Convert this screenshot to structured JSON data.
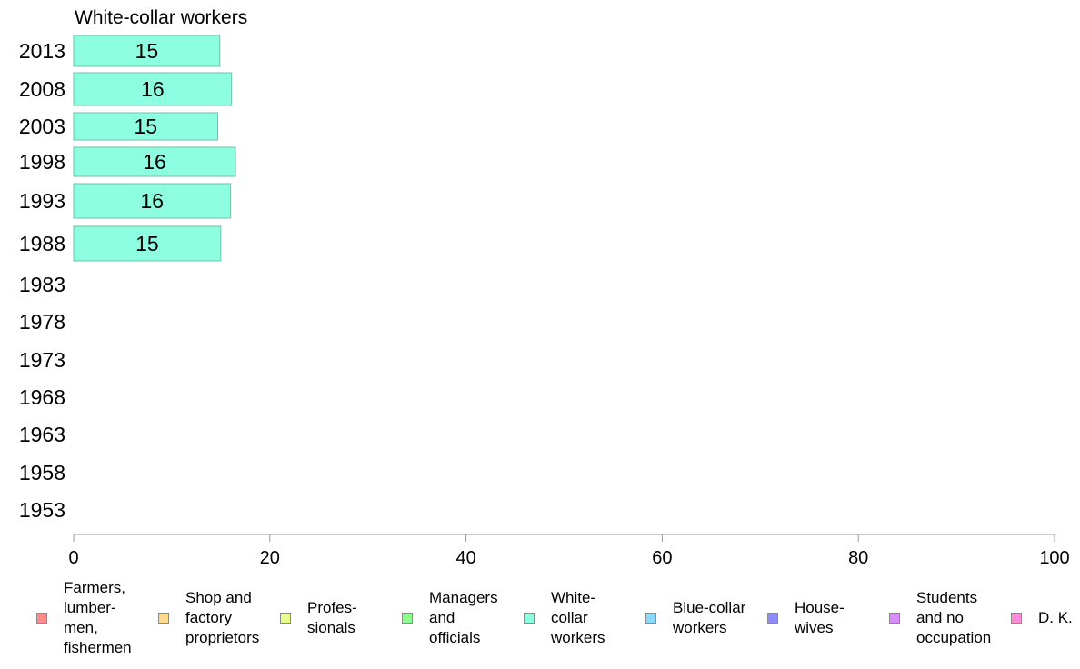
{
  "chart_data": {
    "type": "bar",
    "orientation": "horizontal",
    "title": "White-collar workers",
    "categories": [
      "2013",
      "2008",
      "2003",
      "1998",
      "1993",
      "1988",
      "1983",
      "1978",
      "1973",
      "1968",
      "1963",
      "1958",
      "1953"
    ],
    "series": [
      {
        "name": "White-collar workers",
        "values": [
          14.9,
          16.1,
          14.7,
          16.5,
          16.0,
          15.0,
          null,
          null,
          null,
          null,
          null,
          null,
          null
        ],
        "labels": [
          "15",
          "16",
          "15",
          "16",
          "16",
          "15",
          "",
          "",
          "",
          "",
          "",
          "",
          ""
        ],
        "color": "#8dffe0"
      }
    ],
    "xlim": [
      0,
      100
    ],
    "xticks": [
      "0",
      "20",
      "40",
      "60",
      "80",
      "100"
    ],
    "grid": false,
    "legend_placement": "bottom",
    "legend": [
      {
        "label": "Farmers,\nlumber-\nmen,\nfishermen",
        "color": "#ff8c8c"
      },
      {
        "label": "Shop and\nfactory\nproprietors",
        "color": "#ffd98c"
      },
      {
        "label": "Profes-\nsionals",
        "color": "#e6ff8c"
      },
      {
        "label": "Managers\nand\nofficials",
        "color": "#8cff8c"
      },
      {
        "label": "White-\ncollar\nworkers",
        "color": "#8dffe0"
      },
      {
        "label": "Blue-collar\nworkers",
        "color": "#8cd9ff"
      },
      {
        "label": "House-\nwives",
        "color": "#8c8cff"
      },
      {
        "label": "Students\nand no\noccupation",
        "color": "#d98cff"
      },
      {
        "label": "D. K.",
        "color": "#ff8cd9"
      }
    ]
  }
}
